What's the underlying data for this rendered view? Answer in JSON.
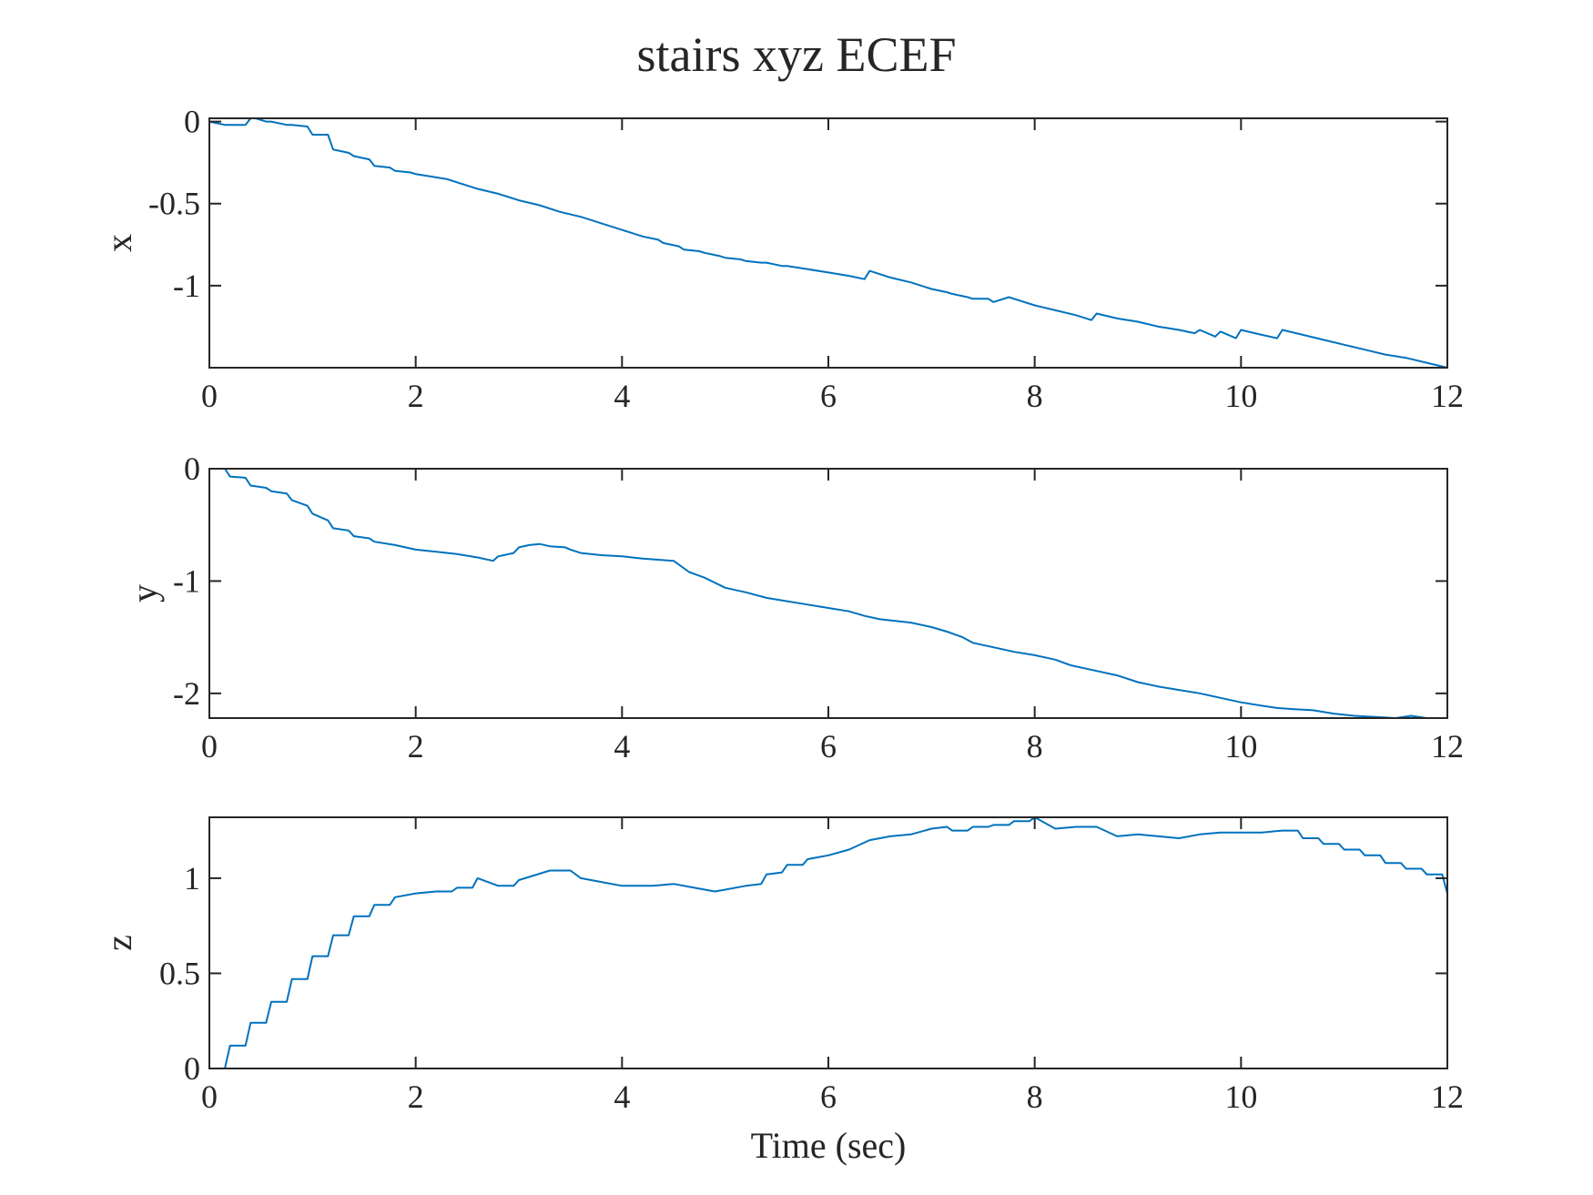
{
  "chart_data": {
    "type": "line",
    "title": "stairs xyz ECEF",
    "colors": {
      "series": "#0072BD",
      "axes": "#262626"
    },
    "grid": false,
    "legend": "none",
    "subplots": [
      {
        "ylabel": "x",
        "xlabel": "",
        "xlim": [
          0,
          12
        ],
        "ylim": [
          -1.5,
          0.02
        ],
        "xticks": [
          0,
          2,
          4,
          6,
          8,
          10,
          12
        ],
        "xtick_labels": [
          "0",
          "2",
          "4",
          "6",
          "8",
          "10",
          "12"
        ],
        "yticks": [
          0,
          -0.5,
          -1
        ],
        "ytick_labels": [
          "0",
          "-0.5",
          "-1"
        ],
        "series": [
          {
            "x": [
              0,
              0.15,
              0.2,
              0.35,
              0.4,
              0.45,
              0.55,
              0.6,
              0.75,
              0.8,
              0.95,
              1.0,
              1.15,
              1.2,
              1.35,
              1.4,
              1.55,
              1.6,
              1.75,
              1.8,
              1.95,
              2.0,
              2.2,
              2.3,
              2.5,
              2.6,
              2.8,
              2.9,
              3.0,
              3.2,
              3.4,
              3.6,
              3.8,
              4.0,
              4.1,
              4.2,
              4.35,
              4.4,
              4.55,
              4.6,
              4.75,
              4.8,
              4.95,
              5.0,
              5.15,
              5.2,
              5.35,
              5.4,
              5.55,
              5.6,
              5.8,
              6.0,
              6.2,
              6.35,
              6.4,
              6.6,
              6.8,
              7.0,
              7.15,
              7.2,
              7.35,
              7.4,
              7.55,
              7.6,
              7.75,
              7.8,
              8.0,
              8.2,
              8.4,
              8.55,
              8.6,
              8.8,
              9.0,
              9.2,
              9.4,
              9.55,
              9.6,
              9.75,
              9.8,
              9.95,
              10.0,
              10.2,
              10.35,
              10.4,
              10.6,
              10.8,
              11.0,
              11.2,
              11.4,
              11.6,
              11.8,
              12.0
            ],
            "y": [
              0,
              -0.02,
              -0.02,
              -0.02,
              0.02,
              0.02,
              0.0,
              0.0,
              -0.02,
              -0.02,
              -0.03,
              -0.08,
              -0.08,
              -0.17,
              -0.19,
              -0.21,
              -0.23,
              -0.27,
              -0.28,
              -0.3,
              -0.31,
              -0.32,
              -0.34,
              -0.35,
              -0.39,
              -0.41,
              -0.44,
              -0.46,
              -0.48,
              -0.51,
              -0.55,
              -0.58,
              -0.62,
              -0.66,
              -0.68,
              -0.7,
              -0.72,
              -0.74,
              -0.76,
              -0.78,
              -0.79,
              -0.8,
              -0.82,
              -0.83,
              -0.84,
              -0.85,
              -0.86,
              -0.86,
              -0.88,
              -0.88,
              -0.9,
              -0.92,
              -0.94,
              -0.96,
              -0.91,
              -0.95,
              -0.98,
              -1.02,
              -1.04,
              -1.05,
              -1.07,
              -1.08,
              -1.08,
              -1.1,
              -1.07,
              -1.08,
              -1.12,
              -1.15,
              -1.18,
              -1.21,
              -1.17,
              -1.2,
              -1.22,
              -1.25,
              -1.27,
              -1.29,
              -1.27,
              -1.31,
              -1.28,
              -1.32,
              -1.27,
              -1.3,
              -1.32,
              -1.27,
              -1.3,
              -1.33,
              -1.36,
              -1.39,
              -1.42,
              -1.44,
              -1.47,
              -1.5
            ]
          }
        ]
      },
      {
        "ylabel": "y",
        "xlabel": "",
        "xlim": [
          0,
          12
        ],
        "ylim": [
          -2.22,
          0
        ],
        "xticks": [
          0,
          2,
          4,
          6,
          8,
          10,
          12
        ],
        "xtick_labels": [
          "0",
          "2",
          "4",
          "6",
          "8",
          "10",
          "12"
        ],
        "yticks": [
          0,
          -1,
          -2
        ],
        "ytick_labels": [
          "0",
          "-1",
          "-2"
        ],
        "series": [
          {
            "x": [
              0,
              0.15,
              0.2,
              0.35,
              0.4,
              0.55,
              0.6,
              0.75,
              0.8,
              0.95,
              1.0,
              1.15,
              1.2,
              1.35,
              1.4,
              1.55,
              1.6,
              1.8,
              2.0,
              2.2,
              2.4,
              2.6,
              2.75,
              2.8,
              2.95,
              3.0,
              3.1,
              3.2,
              3.3,
              3.45,
              3.5,
              3.6,
              3.8,
              4.0,
              4.2,
              4.5,
              4.65,
              4.8,
              5.0,
              5.2,
              5.4,
              5.6,
              5.8,
              6.0,
              6.2,
              6.35,
              6.5,
              6.8,
              7.0,
              7.15,
              7.3,
              7.4,
              7.6,
              7.8,
              8.0,
              8.2,
              8.35,
              8.5,
              8.8,
              9.0,
              9.2,
              9.4,
              9.6,
              9.8,
              10.0,
              10.2,
              10.35,
              10.5,
              10.7,
              10.9,
              11.1,
              11.3,
              11.5,
              11.65,
              11.8,
              12.0
            ],
            "y": [
              0,
              0,
              -0.07,
              -0.08,
              -0.15,
              -0.17,
              -0.2,
              -0.22,
              -0.28,
              -0.33,
              -0.4,
              -0.46,
              -0.53,
              -0.55,
              -0.6,
              -0.62,
              -0.65,
              -0.68,
              -0.72,
              -0.74,
              -0.76,
              -0.79,
              -0.82,
              -0.78,
              -0.75,
              -0.7,
              -0.68,
              -0.67,
              -0.69,
              -0.7,
              -0.72,
              -0.75,
              -0.77,
              -0.78,
              -0.8,
              -0.82,
              -0.92,
              -0.97,
              -1.06,
              -1.1,
              -1.15,
              -1.18,
              -1.21,
              -1.24,
              -1.27,
              -1.31,
              -1.34,
              -1.37,
              -1.41,
              -1.45,
              -1.5,
              -1.55,
              -1.59,
              -1.63,
              -1.66,
              -1.7,
              -1.75,
              -1.78,
              -1.84,
              -1.9,
              -1.94,
              -1.97,
              -2.0,
              -2.04,
              -2.08,
              -2.11,
              -2.13,
              -2.14,
              -2.15,
              -2.18,
              -2.2,
              -2.21,
              -2.22,
              -2.2,
              -2.22,
              -2.22
            ]
          }
        ]
      },
      {
        "ylabel": "z",
        "xlabel": "Time (sec)",
        "xlim": [
          0,
          12
        ],
        "ylim": [
          0,
          1.32
        ],
        "xticks": [
          0,
          2,
          4,
          6,
          8,
          10,
          12
        ],
        "xtick_labels": [
          "0",
          "2",
          "4",
          "6",
          "8",
          "10",
          "12"
        ],
        "yticks": [
          1,
          0.5,
          0
        ],
        "ytick_labels": [
          "1",
          "0.5",
          "0"
        ],
        "series": [
          {
            "x": [
              0,
              0.15,
              0.2,
              0.35,
              0.4,
              0.55,
              0.6,
              0.75,
              0.8,
              0.95,
              1.0,
              1.15,
              1.2,
              1.35,
              1.4,
              1.55,
              1.6,
              1.75,
              1.8,
              2.0,
              2.2,
              2.35,
              2.4,
              2.55,
              2.6,
              2.8,
              2.95,
              3.0,
              3.3,
              3.5,
              3.6,
              3.8,
              4.0,
              4.3,
              4.5,
              4.7,
              4.9,
              5.0,
              5.2,
              5.35,
              5.4,
              5.55,
              5.6,
              5.75,
              5.8,
              6.0,
              6.2,
              6.4,
              6.6,
              6.8,
              7.0,
              7.15,
              7.2,
              7.35,
              7.4,
              7.55,
              7.6,
              7.75,
              7.8,
              7.95,
              8.0,
              8.2,
              8.4,
              8.6,
              8.8,
              9.0,
              9.2,
              9.4,
              9.6,
              9.8,
              10.0,
              10.2,
              10.4,
              10.55,
              10.6,
              10.75,
              10.8,
              10.95,
              11.0,
              11.15,
              11.2,
              11.35,
              11.4,
              11.55,
              11.6,
              11.75,
              11.8,
              11.95,
              12.0
            ],
            "y": [
              0,
              0,
              0.12,
              0.12,
              0.24,
              0.24,
              0.35,
              0.35,
              0.47,
              0.47,
              0.59,
              0.59,
              0.7,
              0.7,
              0.8,
              0.8,
              0.86,
              0.86,
              0.9,
              0.92,
              0.93,
              0.93,
              0.95,
              0.95,
              1.0,
              0.96,
              0.96,
              0.99,
              1.04,
              1.04,
              1.0,
              0.98,
              0.96,
              0.96,
              0.97,
              0.95,
              0.93,
              0.94,
              0.96,
              0.97,
              1.02,
              1.03,
              1.07,
              1.07,
              1.1,
              1.12,
              1.15,
              1.2,
              1.22,
              1.23,
              1.26,
              1.27,
              1.25,
              1.25,
              1.27,
              1.27,
              1.28,
              1.28,
              1.3,
              1.3,
              1.32,
              1.26,
              1.27,
              1.27,
              1.22,
              1.23,
              1.22,
              1.21,
              1.23,
              1.24,
              1.24,
              1.24,
              1.25,
              1.25,
              1.21,
              1.21,
              1.18,
              1.18,
              1.15,
              1.15,
              1.12,
              1.12,
              1.08,
              1.08,
              1.05,
              1.05,
              1.02,
              1.02,
              0.92
            ]
          }
        ]
      }
    ]
  }
}
